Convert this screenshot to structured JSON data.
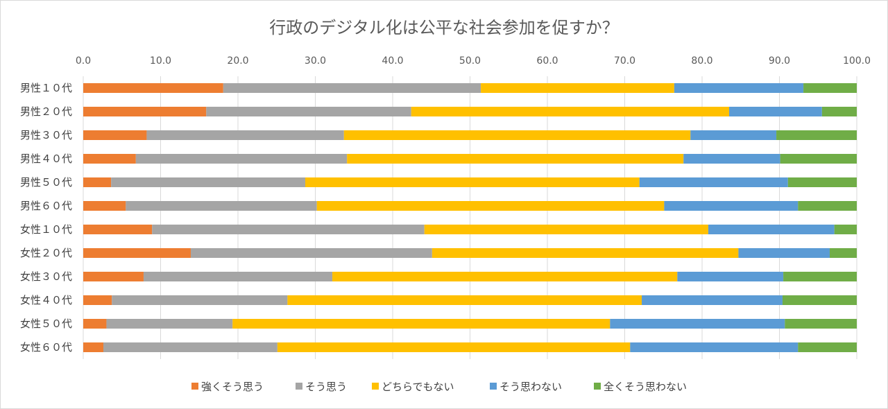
{
  "chart_data": {
    "type": "bar",
    "orientation": "horizontal",
    "stacked": true,
    "title": "行政のデジタル化は公平な社会参加を促すか？",
    "xlim": [
      0,
      100
    ],
    "xticks": [
      "0.0",
      "10.0",
      "20.0",
      "30.0",
      "40.0",
      "50.0",
      "60.0",
      "70.0",
      "80.0",
      "90.0",
      "100.0"
    ],
    "grid": true,
    "legend_position": "bottom",
    "categories": [
      "男性１０代",
      "男性２０代",
      "男性３０代",
      "男性４０代",
      "男性５０代",
      "男性６０代",
      "女性１０代",
      "女性２０代",
      "女性３０代",
      "女性４０代",
      "女性５０代",
      "女性６０代"
    ],
    "series": [
      {
        "name": "強くそう思う",
        "color": "#ED7D31",
        "values": [
          18.1,
          15.9,
          8.2,
          6.8,
          3.6,
          5.5,
          8.9,
          13.9,
          7.8,
          3.7,
          3.0,
          2.6
        ]
      },
      {
        "name": "そう思う",
        "color": "#A5A5A5",
        "values": [
          33.3,
          26.5,
          25.5,
          27.3,
          25.1,
          24.7,
          35.2,
          31.2,
          24.4,
          22.7,
          16.3,
          22.5
        ]
      },
      {
        "name": "どちらでもない",
        "color": "#FFC000",
        "values": [
          25.0,
          41.1,
          44.8,
          43.5,
          43.2,
          44.9,
          36.7,
          39.6,
          44.6,
          45.8,
          48.8,
          45.6
        ]
      },
      {
        "name": "そう思わない",
        "color": "#5B9BD5",
        "values": [
          16.7,
          12.0,
          11.1,
          12.5,
          19.2,
          17.3,
          16.3,
          11.8,
          13.7,
          18.2,
          22.6,
          21.7
        ]
      },
      {
        "name": "全くそう思わない",
        "color": "#70AD47",
        "values": [
          6.9,
          4.5,
          10.4,
          9.9,
          8.9,
          7.6,
          2.9,
          3.5,
          9.5,
          9.6,
          9.3,
          7.6
        ]
      }
    ]
  }
}
